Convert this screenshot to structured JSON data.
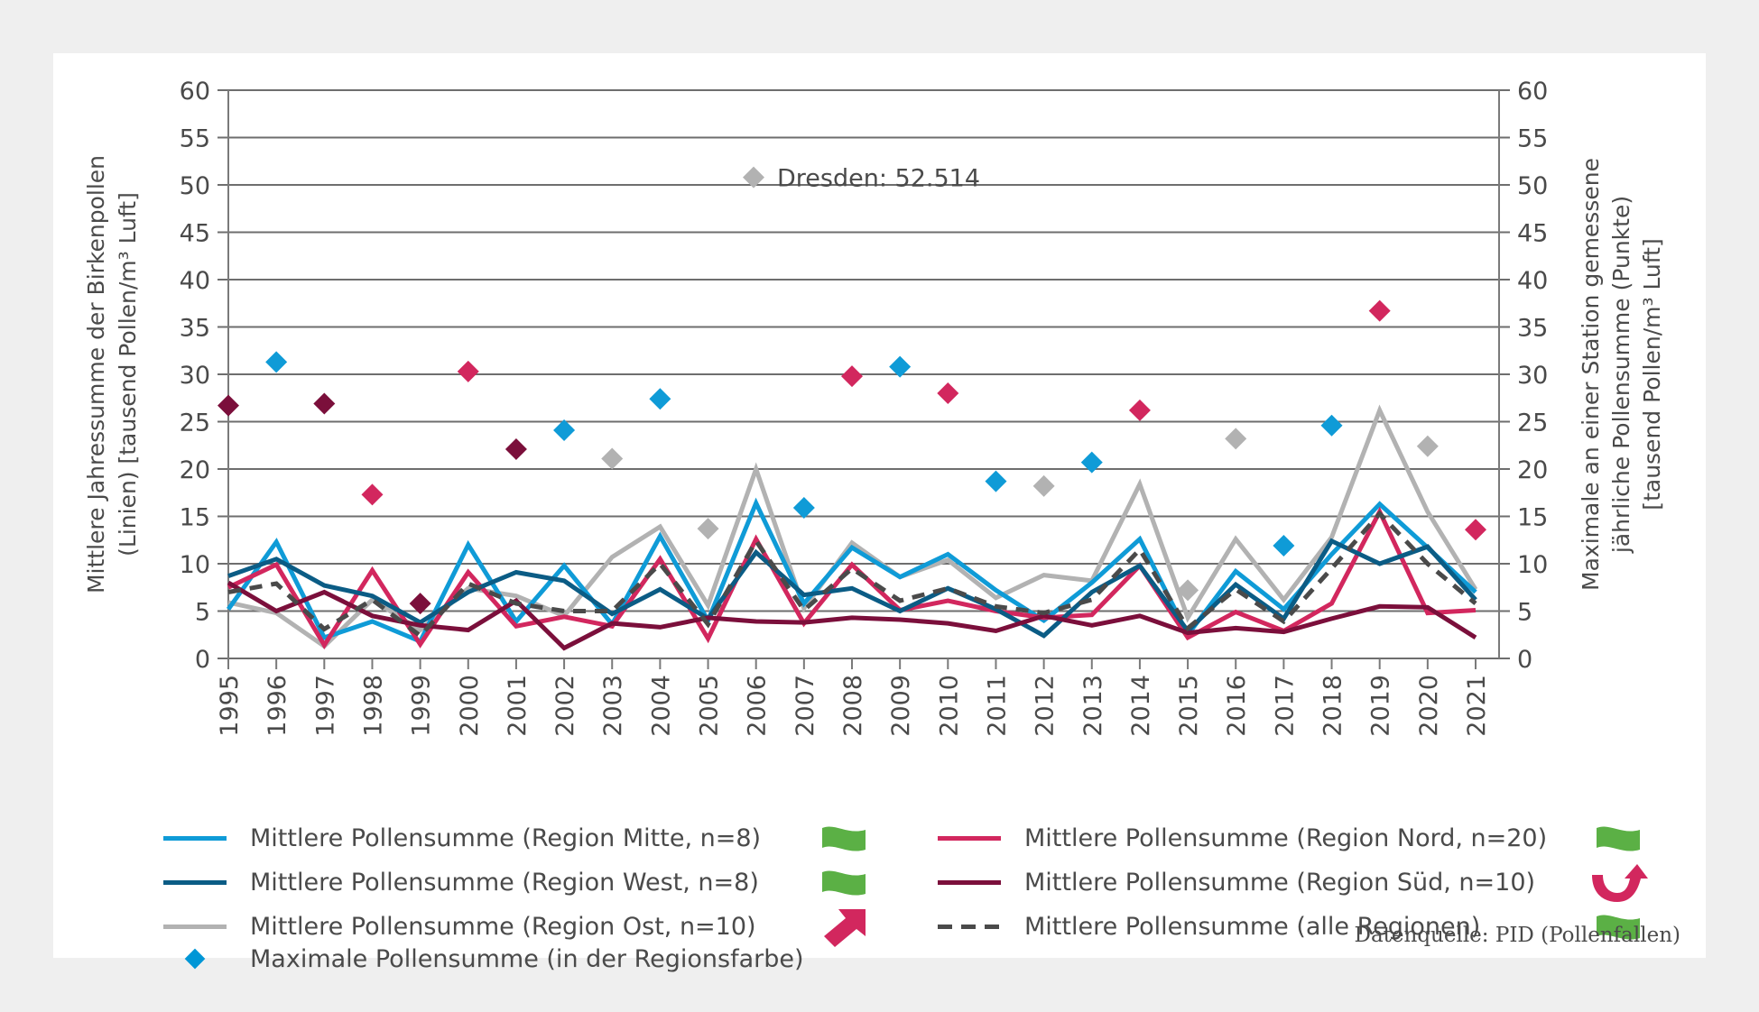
{
  "colors": {
    "mitte": "#0f9bd7",
    "west": "#0b5c85",
    "ost": "#b2b2b2",
    "nord": "#d2275e",
    "sued": "#7b0f3b",
    "alle": "#4a4a4a",
    "trend_green": "#5bb045",
    "trend_red": "#d2275e"
  },
  "chart_data": {
    "type": "line",
    "title": "",
    "xlabel": "",
    "ylabel": "Mittlere Jahressumme der Birkenpollen (Linien) [tausend Pollen/m³ Luft]",
    "ylabel_lines": [
      "Mittlere Jahressumme der Birkenpollen",
      "(Linien) [tausend Pollen/m³ Luft]"
    ],
    "y2label": "Maximale an einer Station gemessene jährliche Pollensumme (Punkte) [tausend Pollen/m³ Luft]",
    "y2label_lines": [
      "Maximale an einer Station gemessene",
      "jährliche Pollensumme (Punkte)",
      "[tausend Pollen/m³ Luft]"
    ],
    "ylim": [
      0,
      60
    ],
    "y2lim": [
      0,
      60
    ],
    "yticks": [
      0,
      5,
      10,
      15,
      20,
      25,
      30,
      35,
      40,
      45,
      50,
      55,
      60
    ],
    "grid": true,
    "x": [
      "1995",
      "1996",
      "1997",
      "1998",
      "1999",
      "2000",
      "2001",
      "2002",
      "2003",
      "2004",
      "2005",
      "2006",
      "2007",
      "2008",
      "2009",
      "2010",
      "2011",
      "2012",
      "2013",
      "2014",
      "2015",
      "2016",
      "2017",
      "2018",
      "2019",
      "2020",
      "2021"
    ],
    "series": [
      {
        "key": "mitte",
        "name": "Mittlere Pollensumme (Region Mitte, n=8)",
        "style": "solid",
        "values": [
          5.2,
          12.3,
          2.2,
          3.9,
          1.8,
          12.0,
          3.9,
          9.8,
          3.6,
          12.9,
          4.0,
          16.4,
          5.8,
          11.7,
          8.6,
          11.0,
          7.2,
          4.0,
          8.0,
          12.6,
          2.5,
          9.2,
          5.2,
          11.0,
          16.3,
          11.7,
          7.0
        ]
      },
      {
        "key": "west",
        "name": "Mittlere Pollensumme (Region West, n=8)",
        "style": "solid",
        "values": [
          8.7,
          10.5,
          7.7,
          6.6,
          3.8,
          7.0,
          9.1,
          8.2,
          4.7,
          7.3,
          4.2,
          11.2,
          6.7,
          7.4,
          5.0,
          7.4,
          5.2,
          2.4,
          7.0,
          9.8,
          2.9,
          7.8,
          4.2,
          12.4,
          10.0,
          11.8,
          6.2
        ]
      },
      {
        "key": "ost",
        "name": "Mittlere Pollensumme (Region Ost, n=10)",
        "style": "solid",
        "values": [
          5.9,
          4.8,
          1.3,
          6.2,
          3.0,
          7.4,
          6.6,
          4.5,
          10.7,
          13.9,
          5.6,
          20.0,
          5.3,
          12.2,
          8.6,
          10.4,
          6.4,
          8.8,
          8.2,
          18.4,
          4.3,
          12.6,
          6.2,
          12.8,
          26.2,
          15.5,
          7.3
        ]
      },
      {
        "key": "nord",
        "name": "Mittlere Pollensumme (Region Nord, n=20)",
        "style": "solid",
        "values": [
          7.5,
          9.9,
          1.4,
          9.3,
          1.5,
          9.1,
          3.4,
          4.4,
          3.4,
          10.5,
          2.1,
          12.6,
          3.7,
          9.9,
          5.1,
          6.1,
          5.0,
          4.3,
          4.6,
          9.8,
          2.2,
          4.9,
          2.9,
          5.8,
          15.5,
          4.8,
          5.1
        ]
      },
      {
        "key": "sued",
        "name": "Mittlere Pollensumme (Region Süd, n=10)",
        "style": "solid",
        "values": [
          8.0,
          5.0,
          7.0,
          4.5,
          3.5,
          3.0,
          6.1,
          1.1,
          3.7,
          3.3,
          4.3,
          3.9,
          3.8,
          4.3,
          4.1,
          3.7,
          2.9,
          4.5,
          3.5,
          4.5,
          2.7,
          3.2,
          2.8,
          4.2,
          5.5,
          5.4,
          2.2
        ]
      },
      {
        "key": "alle",
        "name": "Mittlere Pollensumme (alle Regionen)",
        "style": "dashed",
        "values": [
          7.0,
          7.9,
          3.1,
          6.2,
          2.4,
          7.9,
          5.8,
          5.0,
          5.0,
          10.0,
          3.6,
          12.4,
          5.1,
          9.5,
          6.1,
          7.4,
          5.5,
          4.8,
          6.2,
          11.5,
          3.2,
          7.3,
          3.9,
          9.5,
          15.3,
          10.0,
          5.8
        ]
      }
    ],
    "max_points": [
      {
        "x": "1995",
        "value": 26.7,
        "region": "sued"
      },
      {
        "x": "1996",
        "value": 31.3,
        "region": "mitte"
      },
      {
        "x": "1997",
        "value": 26.9,
        "region": "sued"
      },
      {
        "x": "1998",
        "value": 17.3,
        "region": "nord"
      },
      {
        "x": "1999",
        "value": 5.8,
        "region": "sued"
      },
      {
        "x": "2000",
        "value": 30.3,
        "region": "nord"
      },
      {
        "x": "2001",
        "value": 22.1,
        "region": "sued"
      },
      {
        "x": "2002",
        "value": 24.1,
        "region": "mitte"
      },
      {
        "x": "2003",
        "value": 21.1,
        "region": "ost"
      },
      {
        "x": "2004",
        "value": 27.4,
        "region": "mitte"
      },
      {
        "x": "2005",
        "value": 13.7,
        "region": "ost"
      },
      {
        "x": "2007",
        "value": 15.9,
        "region": "mitte"
      },
      {
        "x": "2008",
        "value": 29.8,
        "region": "nord"
      },
      {
        "x": "2009",
        "value": 30.8,
        "region": "mitte"
      },
      {
        "x": "2010",
        "value": 28.0,
        "region": "nord"
      },
      {
        "x": "2011",
        "value": 18.7,
        "region": "mitte"
      },
      {
        "x": "2012",
        "value": 18.2,
        "region": "ost"
      },
      {
        "x": "2013",
        "value": 20.7,
        "region": "mitte"
      },
      {
        "x": "2014",
        "value": 26.2,
        "region": "nord"
      },
      {
        "x": "2015",
        "value": 7.2,
        "region": "ost"
      },
      {
        "x": "2016",
        "value": 23.2,
        "region": "ost"
      },
      {
        "x": "2017",
        "value": 11.9,
        "region": "mitte"
      },
      {
        "x": "2018",
        "value": 24.6,
        "region": "mitte"
      },
      {
        "x": "2019",
        "value": 36.7,
        "region": "nord"
      },
      {
        "x": "2020",
        "value": 22.4,
        "region": "ost"
      },
      {
        "x": "2021",
        "value": 13.6,
        "region": "nord"
      }
    ],
    "annotation": {
      "x": "2006",
      "value": 52.514,
      "region": "ost",
      "text": "Dresden: 52.514",
      "note": "off-scale point, shown as label"
    },
    "legend_placement": "bottom"
  },
  "legend": {
    "items": [
      {
        "key": "mitte",
        "label": "Mittlere Pollensumme (Region Mitte, n=8)",
        "trend": "no-trend"
      },
      {
        "key": "west",
        "label": "Mittlere Pollensumme (Region West, n=8)",
        "trend": "no-trend"
      },
      {
        "key": "ost",
        "label": "Mittlere Pollensumme (Region Ost, n=10)",
        "trend": "increasing"
      },
      {
        "key": "nord",
        "label": "Mittlere Pollensumme (Region Nord, n=20)",
        "trend": "no-trend"
      },
      {
        "key": "sued",
        "label": "Mittlere Pollensumme (Region Süd, n=10)",
        "trend": "trend-reversal-up"
      },
      {
        "key": "alle",
        "label": "Mittlere Pollensumme (alle Regionen)",
        "trend": "no-trend"
      }
    ],
    "max_label": "Maximale Pollensumme (in der Regionsfarbe)"
  },
  "source": "Datenquelle: PID (Pollenfallen)"
}
